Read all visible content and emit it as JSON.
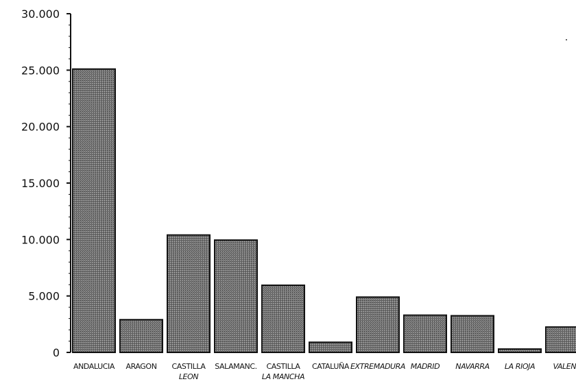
{
  "chart_data": {
    "type": "bar",
    "title": "",
    "xlabel": "",
    "ylabel": "",
    "ylim": [
      0,
      30000
    ],
    "yticks": [
      0,
      5000,
      10000,
      15000,
      20000,
      25000,
      30000
    ],
    "ytick_labels": [
      "0",
      "5.000",
      "10.000",
      "15.000",
      "20.000",
      "25.000",
      "30.000"
    ],
    "categories": [
      {
        "lines": [
          "ANDALUCIA"
        ],
        "italic": false
      },
      {
        "lines": [
          "ARAGON"
        ],
        "italic": false
      },
      {
        "lines": [
          "CASTILLA",
          "LEON"
        ],
        "italic": false
      },
      {
        "lines": [
          "SALAMANC."
        ],
        "italic": false
      },
      {
        "lines": [
          "CASTILLA",
          "LA MANCHA"
        ],
        "italic": false
      },
      {
        "lines": [
          "CATALUÑA"
        ],
        "italic": false
      },
      {
        "lines": [
          "EXTREMADURA"
        ],
        "italic": true
      },
      {
        "lines": [
          "MADRID"
        ],
        "italic": true
      },
      {
        "lines": [
          "NAVARRA"
        ],
        "italic": true
      },
      {
        "lines": [
          "LA RIOJA"
        ],
        "italic": true
      },
      {
        "lines": [
          "VALENC"
        ],
        "italic": true
      }
    ],
    "values": [
      25100,
      2900,
      10400,
      9950,
      5950,
      900,
      4900,
      3300,
      3250,
      300,
      2250
    ],
    "bar_color": "#7a7a7a",
    "grid": false,
    "legend": "none"
  }
}
